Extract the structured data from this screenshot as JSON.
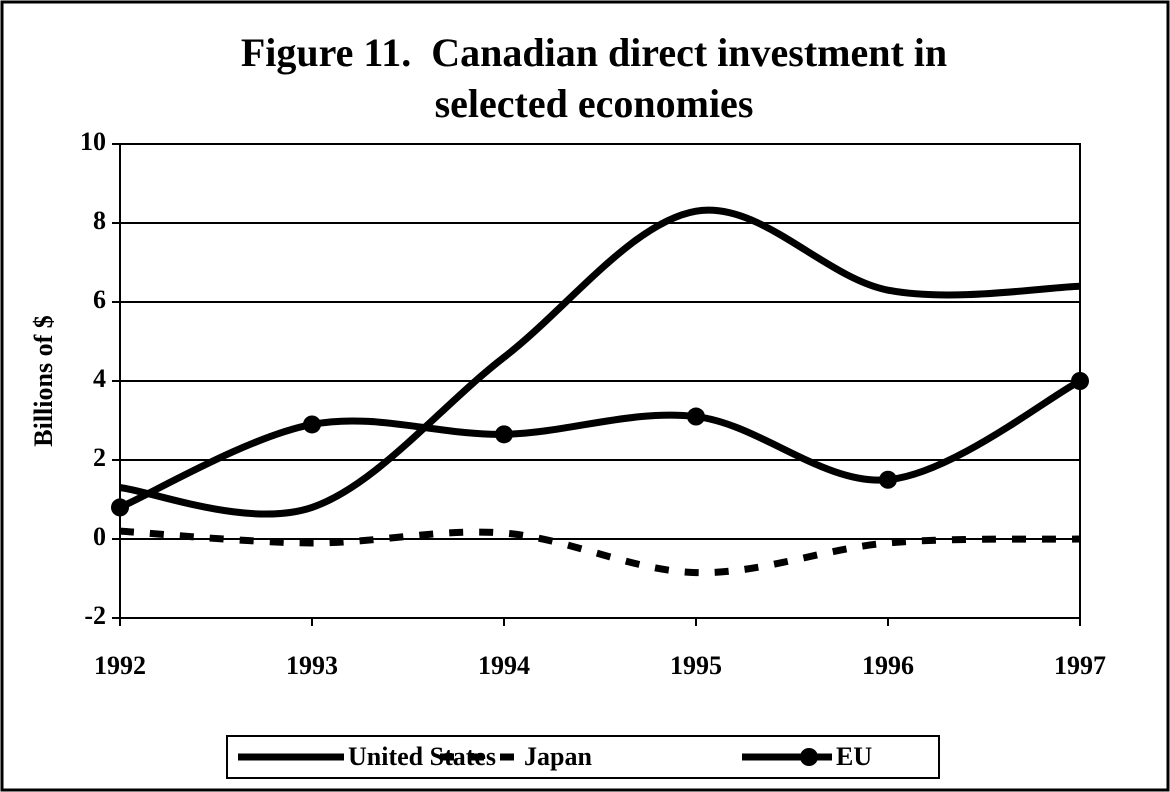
{
  "chart_data": {
    "type": "line",
    "title": [
      "Figure 11.  Canadian direct investment in",
      "selected economies"
    ],
    "ylabel": "Billions of $",
    "x": [
      1992,
      1993,
      1994,
      1995,
      1996,
      1997
    ],
    "xlim": [
      1992,
      1997
    ],
    "xticks": [
      1992,
      1993,
      1994,
      1995,
      1996,
      1997
    ],
    "ylim": [
      -2,
      10
    ],
    "yticks": [
      -2,
      0,
      2,
      4,
      6,
      8,
      10
    ],
    "grid": true,
    "smooth": true,
    "legend": "bottom",
    "series": [
      {
        "name": "United States",
        "color": "#000000",
        "line_style": "solid",
        "marker": "none",
        "values": [
          1.3,
          0.8,
          4.6,
          8.3,
          6.3,
          6.4
        ]
      },
      {
        "name": "Japan",
        "color": "#000000",
        "line_style": "dashed",
        "marker": "none",
        "values": [
          0.2,
          -0.1,
          0.15,
          -0.85,
          -0.1,
          0.0
        ]
      },
      {
        "name": "EU",
        "color": "#000000",
        "line_style": "solid",
        "marker": "circle",
        "values": [
          0.8,
          2.9,
          2.65,
          3.1,
          1.5,
          4.0
        ]
      }
    ]
  }
}
